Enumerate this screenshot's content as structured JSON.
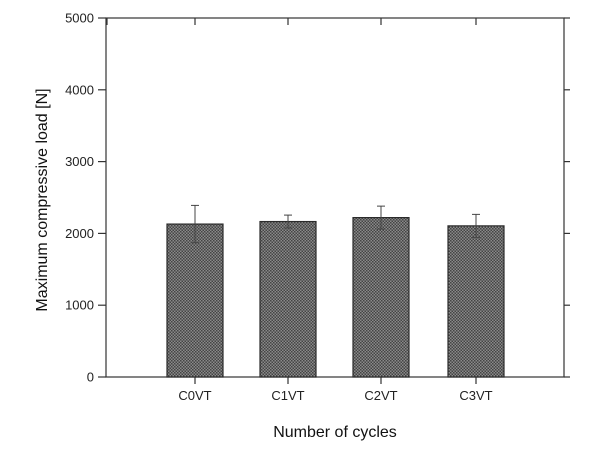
{
  "chart_data": {
    "type": "bar",
    "categories": [
      "C0VT",
      "C1VT",
      "C2VT",
      "C3VT"
    ],
    "values": [
      2130,
      2165,
      2220,
      2105
    ],
    "error_upper": [
      2390,
      2255,
      2380,
      2265
    ],
    "error_lower": [
      1870,
      2075,
      2060,
      1945
    ],
    "xlabel": "Number of cycles",
    "ylabel": "Maximum compressive load [N]",
    "ylim": [
      0,
      5000
    ],
    "yticks": [
      "0",
      "1000",
      "2000",
      "3000",
      "4000",
      "5000"
    ],
    "grid": false,
    "bar_fill": "crosshatch",
    "bar_color": "#6e6e6e"
  }
}
